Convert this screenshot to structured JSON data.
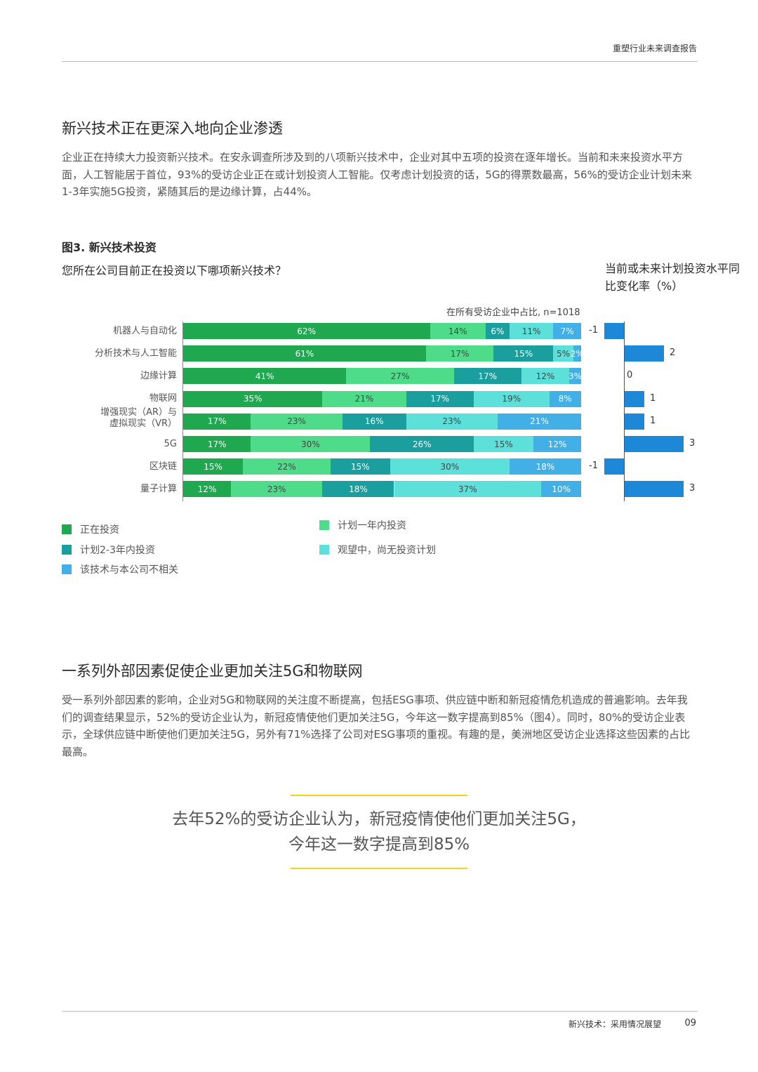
{
  "header": {
    "title": "重塑行业未来调查报告"
  },
  "section1": {
    "heading": "新兴技术正在更深入地向企业渗透",
    "paragraph": "企业正在持续大力投资新兴技术。在安永调查所涉及到的八项新兴技术中，企业对其中五项的投资在逐年增长。当前和未来投资水平方面，人工智能居于首位，93%的受访企业正在或计划投资人工智能。仅考虑计划投资的话，5G的得票数最高，56%的受访企业计划未来1-3年实施5G投资，紧随其后的是边缘计算，占44%。"
  },
  "figure": {
    "label": "图3. 新兴技术投资",
    "question": "您所在公司目前正在投资以下哪项新兴技术？",
    "right_heading": "当前或未来计划投资水平同比变化率（%）",
    "sample_note": "在所有受访企业中占比, n=1018"
  },
  "chart_data": {
    "type": "bar",
    "stacked": true,
    "orientation": "horizontal",
    "categories": [
      "机器人与自动化",
      "分析技术与人工智能",
      "边缘计算",
      "物联网",
      "增强现实（AR）与虚拟现实（VR）",
      "5G",
      "区块链",
      "量子计算"
    ],
    "category_lines": [
      [
        "机器人与自动化"
      ],
      [
        "分析技术与人工智能"
      ],
      [
        "边缘计算"
      ],
      [
        "物联网"
      ],
      [
        "增强现实（AR）与",
        "虚拟现实（VR）"
      ],
      [
        "5G"
      ],
      [
        "区块链"
      ],
      [
        "量子计算"
      ]
    ],
    "series": [
      {
        "name": "正在投资",
        "color": "#1fa84f",
        "values": [
          62,
          61,
          41,
          35,
          17,
          17,
          15,
          12
        ]
      },
      {
        "name": "计划一年内投资",
        "color": "#4fdc8a",
        "values": [
          14,
          17,
          27,
          21,
          23,
          30,
          22,
          23
        ]
      },
      {
        "name": "计划2-3年内投资",
        "color": "#1a9e9e",
        "values": [
          6,
          15,
          17,
          17,
          16,
          26,
          15,
          18
        ]
      },
      {
        "name": "观望中，尚无投资计划",
        "color": "#5de0da",
        "values": [
          11,
          5,
          12,
          19,
          23,
          15,
          30,
          37
        ]
      },
      {
        "name": "该技术与本公司不相关",
        "color": "#42b0e6",
        "values": [
          7,
          2,
          3,
          8,
          21,
          12,
          18,
          10
        ]
      }
    ],
    "value_suffix": "%",
    "yoy_change": {
      "title": "当前或未来计划投资水平同比变化率（%）",
      "values": [
        -1,
        2,
        0,
        1,
        1,
        3,
        -1,
        3
      ],
      "color": "#1e88d8"
    }
  },
  "legend": [
    {
      "label": "正在投资",
      "color": "#1fa84f"
    },
    {
      "label": "计划一年内投资",
      "color": "#4fdc8a"
    },
    {
      "label": "计划2-3年内投资",
      "color": "#1a9e9e"
    },
    {
      "label": "观望中，尚无投资计划",
      "color": "#5de0da"
    },
    {
      "label": "该技术与本公司不相关",
      "color": "#42b0e6"
    }
  ],
  "section2": {
    "heading": "一系列外部因素促使企业更加关注5G和物联网",
    "paragraph": "受一系列外部因素的影响，企业对5G和物联网的关注度不断提高，包括ESG事项、供应链中断和新冠疫情危机造成的普遍影响。去年我们的调查结果显示，52%的受访企业认为，新冠疫情使他们更加关注5G，今年这一数字提高到85%（图4）。同时，80%的受访企业表示，全球供应链中断使他们更加关注5G，另外有71%选择了公司对ESG事项的重视。有趣的是，美洲地区受访企业选择这些因素的占比最高。"
  },
  "quote": {
    "line1": "去年52%的受访企业认为，新冠疫情使他们更加关注5G，",
    "line2": "今年这一数字提高到85%",
    "rule_color": "#f2d11d"
  },
  "footer": {
    "text": "新兴技术：采用情况展望",
    "page": "09"
  }
}
